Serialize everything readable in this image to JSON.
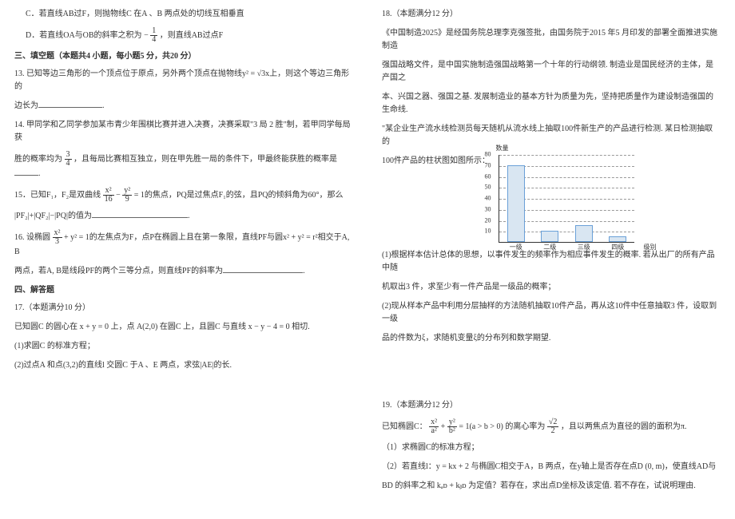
{
  "left": {
    "optC": "C．若直线AB过F，则抛物线C 在A 、B 两点处的切线互相垂直",
    "optD_pre": "D．若直线OA与OB的斜率之积为",
    "optD_frac_n": "1",
    "optD_frac_d": "4",
    "optD_post": "，则直线AB过点F",
    "section3": "三、填空题（本题共4 小题，每小题5 分，共20 分）",
    "q13a": "13. 已知等边三角形的一个顶点位于原点，另外两个顶点在抛物线y² = √3x上，则这个等边三角形的",
    "q13b": "边长为",
    "q14a": "14. 甲同学和乙同学参加某市青少年围棋比赛并进入决赛，决赛采取\"3 局 2 胜\"制，若甲同学每局获",
    "q14b_pre": "胜的概率均为",
    "q14b_frac_n": "3",
    "q14b_frac_d": "4",
    "q14b_post": "，且每局比赛相互独立，则在甲先胜一局的条件下，甲最终能获胜的概率是",
    "q15a_pre": "15．已知F₁，F₂是双曲线",
    "q15a_eq_n1": "x²",
    "q15a_eq_d1": "16",
    "q15a_eq_n2": "y²",
    "q15a_eq_d2": "9",
    "q15a_post": "= 1的焦点，PQ是过焦点F₁的弦，且PQ的倾斜角为60°，那么",
    "q15b": "|PF₂|+|QF₂|−|PQ|的值为",
    "q16a_pre": "16. 设椭圆",
    "q16a_eq_n": "x²",
    "q16a_eq_d": "3",
    "q16a_post": "+ y² = 1的左焦点为F，点P在椭圆上且在第一象限，直线PF与圆x² + y² = r²相交于A, B",
    "q16b": "两点，若A, B是线段PF的两个三等分点，则直线PF的斜率为",
    "section4": "四、解答题",
    "q17t": "17.（本题满分10 分）",
    "q17a": "已知圆C 的圆心在 x + y = 0 上，点 A(2,0) 在圆C 上，且圆C 与直线 x − y − 4 = 0 相切.",
    "q17_1": "(1)求圆C 的标准方程；",
    "q17_2": "(2)过点A 和点(3,2)的直线l 交圆C 于A 、E 两点，求弦|AE|的长."
  },
  "right": {
    "q18t": "18.（本题满分12 分）",
    "q18a": "《中国制造2025》是经国务院总理李克强签批，由国务院于2015 年5 月印发的部署全面推进实施制造",
    "q18b": "强国战略文件，是中国实施制造强国战略第一个十年的行动纲领. 制造业是国民经济的主体，是产国之",
    "q18c": "本、兴国之器、强国之基. 发展制造业的基本方针为质量为先，坚持把质量作为建设制造强国的生命线.",
    "q18d": "\"某企业生产流水线检测员每天随机从流水线上抽取100件新生产的产品进行检测. 某日检测抽取的",
    "q18e": "100件产品的柱状图如图所示：",
    "q18_1": "(1)根据样本估计总体的思想，以事件发生的频率作为相应事件发生的概率. 若从出厂的所有产品中随",
    "q18_1b": "机取出3 件，求至少有一件产品是一级品的概率；",
    "q18_2": "(2)现从样本产品中利用分层抽样的方法随机抽取10件产品，再从这10件中任意抽取3 件，设取到一级",
    "q18_2b": "品的件数为ξ，求随机变量ξ的分布列和数学期望.",
    "chart": {
      "ylabel": "数量",
      "xlabel": "级别",
      "ymax": 80,
      "ystep": 10,
      "categories": [
        "一级",
        "二级",
        "三级",
        "四级"
      ],
      "values": [
        70,
        10,
        15,
        5
      ],
      "bar_fill": "#d9e6f2",
      "bar_border": "#6aa0d8",
      "grid_color": "#999999"
    },
    "q19t": "19.（本题满分12 分）",
    "q19a_pre": "已知椭圆C：",
    "q19a_n1": "x²",
    "q19a_d1": "a²",
    "q19a_n2": "y²",
    "q19a_d2": "b²",
    "q19a_mid": "= 1(a > b > 0) 的离心率为",
    "q19a_n3": "√2",
    "q19a_d3": "2",
    "q19a_post": "，且以两焦点为直径的圆的面积为π.",
    "q19_1": "（1）求椭圆C的标准方程；",
    "q19_2a": "（2）若直线l：y = kx + 2 与椭圆C相交于A，B 两点，在y轴上是否存在点D (0, m)，使直线AD与",
    "q19_2b": "BD 的斜率之和 kₐᴅ + kᵦᴅ 为定值？若存在，求出点D坐标及该定值. 若不存在，试说明理由."
  }
}
